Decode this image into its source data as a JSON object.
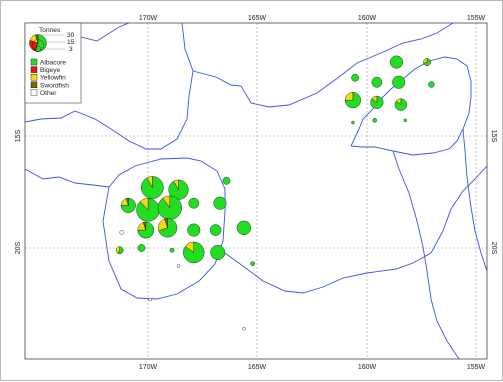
{
  "map": {
    "top_ticks": [
      "170W",
      "165W",
      "160W",
      "155W"
    ],
    "bottom_ticks": [
      "170W",
      "165W",
      "160W",
      "155W"
    ],
    "left_ticks": [
      "15S",
      "20S"
    ],
    "right_ticks": [
      "15S",
      "20S"
    ]
  },
  "legend": {
    "title": "Tonnes",
    "size_values": [
      "30",
      "15",
      "3"
    ],
    "species": [
      {
        "label": "Albacore",
        "color": "#22dd22"
      },
      {
        "label": "Bigeye",
        "color": "#ee1111"
      },
      {
        "label": "Yellowfin",
        "color": "#f0dd10"
      },
      {
        "label": "Swordfish",
        "color": "#7a6a00"
      },
      {
        "label": "Other",
        "color": "#ffffff"
      }
    ]
  },
  "catch_points": [
    {
      "lon": -170.9,
      "lat": -18.1,
      "total": 12,
      "mix": [
        0.75,
        0,
        0.2,
        0.05,
        0
      ]
    },
    {
      "lon": -169.8,
      "lat": -17.3,
      "total": 28,
      "mix": [
        0.92,
        0,
        0.08,
        0,
        0
      ]
    },
    {
      "lon": -168.6,
      "lat": -17.4,
      "total": 22,
      "mix": [
        0.92,
        0,
        0.08,
        0,
        0
      ]
    },
    {
      "lon": -167.9,
      "lat": -18.0,
      "total": 6,
      "mix": [
        1,
        0,
        0,
        0,
        0
      ]
    },
    {
      "lon": -166.7,
      "lat": -18.0,
      "total": 9,
      "mix": [
        1,
        0,
        0,
        0,
        0
      ]
    },
    {
      "lon": -166.4,
      "lat": -17.0,
      "total": 3,
      "mix": [
        1,
        0,
        0,
        0,
        0
      ]
    },
    {
      "lon": -170.0,
      "lat": -18.3,
      "total": 30,
      "mix": [
        0.88,
        0,
        0.12,
        0,
        0
      ]
    },
    {
      "lon": -169.0,
      "lat": -18.2,
      "total": 32,
      "mix": [
        0.9,
        0,
        0.1,
        0,
        0
      ]
    },
    {
      "lon": -170.1,
      "lat": -19.2,
      "total": 15,
      "mix": [
        0.75,
        0,
        0.2,
        0.05,
        0
      ]
    },
    {
      "lon": -169.1,
      "lat": -19.1,
      "total": 20,
      "mix": [
        0.7,
        0,
        0.25,
        0.05,
        0
      ]
    },
    {
      "lon": -167.9,
      "lat": -19.2,
      "total": 9,
      "mix": [
        1,
        0,
        0,
        0,
        0
      ]
    },
    {
      "lon": -166.9,
      "lat": -19.2,
      "total": 7,
      "mix": [
        1,
        0,
        0,
        0,
        0
      ]
    },
    {
      "lon": -165.6,
      "lat": -19.1,
      "total": 11,
      "mix": [
        1,
        0,
        0,
        0,
        0
      ]
    },
    {
      "lon": -171.2,
      "lat": -19.3,
      "total": 1,
      "mix": [
        0,
        0,
        0,
        0,
        1
      ]
    },
    {
      "lon": -171.3,
      "lat": -20.1,
      "total": 3,
      "mix": [
        0.6,
        0,
        0.4,
        0,
        0
      ]
    },
    {
      "lon": -170.3,
      "lat": -20.0,
      "total": 3,
      "mix": [
        1,
        0,
        0,
        0,
        0
      ]
    },
    {
      "lon": -168.9,
      "lat": -20.1,
      "total": 1,
      "mix": [
        1,
        0,
        0,
        0,
        0
      ]
    },
    {
      "lon": -167.9,
      "lat": -20.2,
      "total": 25,
      "mix": [
        0.85,
        0,
        0.15,
        0,
        0
      ]
    },
    {
      "lon": -166.8,
      "lat": -20.2,
      "total": 12,
      "mix": [
        1,
        0,
        0,
        0,
        0
      ]
    },
    {
      "lon": -165.2,
      "lat": -20.7,
      "total": 1,
      "mix": [
        1,
        0,
        0,
        0,
        0
      ]
    },
    {
      "lon": -168.6,
      "lat": -20.8,
      "total": 0.5,
      "mix": [
        0,
        0,
        0,
        0,
        1
      ]
    },
    {
      "lon": -169.9,
      "lat": -22.3,
      "total": 0.5,
      "mix": [
        0,
        0,
        0,
        0,
        1
      ]
    },
    {
      "lon": -165.6,
      "lat": -23.6,
      "total": 0.5,
      "mix": [
        0,
        0,
        0,
        0,
        1
      ]
    },
    {
      "lon": -158.6,
      "lat": -11.7,
      "total": 9,
      "mix": [
        1,
        0,
        0,
        0,
        0
      ]
    },
    {
      "lon": -157.2,
      "lat": -11.7,
      "total": 3,
      "mix": [
        0.7,
        0,
        0.3,
        0,
        0
      ]
    },
    {
      "lon": -160.5,
      "lat": -12.4,
      "total": 3,
      "mix": [
        1,
        0,
        0,
        0,
        0
      ]
    },
    {
      "lon": -159.5,
      "lat": -12.6,
      "total": 6,
      "mix": [
        1,
        0,
        0,
        0,
        0
      ]
    },
    {
      "lon": -158.5,
      "lat": -12.6,
      "total": 9,
      "mix": [
        1,
        0,
        0,
        0,
        0
      ]
    },
    {
      "lon": -157.0,
      "lat": -12.7,
      "total": 2,
      "mix": [
        1,
        0,
        0,
        0,
        0
      ]
    },
    {
      "lon": -160.6,
      "lat": -13.4,
      "total": 14,
      "mix": [
        0.75,
        0,
        0.25,
        0,
        0
      ]
    },
    {
      "lon": -159.5,
      "lat": -13.5,
      "total": 9,
      "mix": [
        0.85,
        0,
        0.15,
        0,
        0
      ]
    },
    {
      "lon": -158.4,
      "lat": -13.6,
      "total": 8,
      "mix": [
        0.85,
        0,
        0.15,
        0,
        0
      ]
    },
    {
      "lon": -160.6,
      "lat": -14.4,
      "total": 0.5,
      "mix": [
        1,
        0,
        0,
        0,
        0
      ]
    },
    {
      "lon": -159.6,
      "lat": -14.3,
      "total": 1,
      "mix": [
        1,
        0,
        0,
        0,
        0
      ]
    },
    {
      "lon": -158.2,
      "lat": -14.3,
      "total": 0.5,
      "mix": [
        1,
        0,
        0,
        0,
        0
      ]
    }
  ]
}
